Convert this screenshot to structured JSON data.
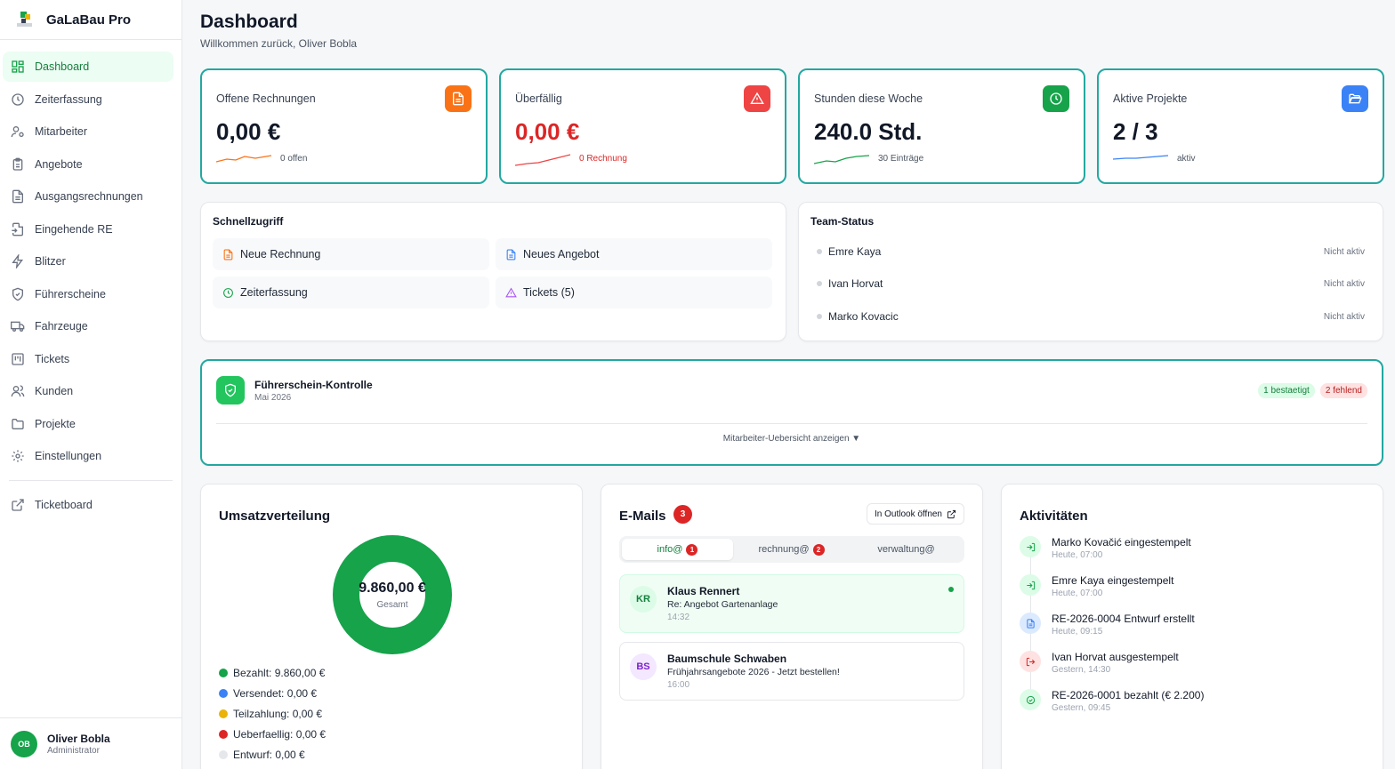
{
  "app": {
    "name": "GaLaBau Pro"
  },
  "sidebar": {
    "items": [
      {
        "label": "Dashboard",
        "icon": "layout-dashboard-icon",
        "active": true
      },
      {
        "label": "Zeiterfassung",
        "icon": "clock-icon"
      },
      {
        "label": "Mitarbeiter",
        "icon": "users-icon"
      },
      {
        "label": "Angebote",
        "icon": "clipboard-icon"
      },
      {
        "label": "Ausgangsrechnungen",
        "icon": "file-text-icon"
      },
      {
        "label": "Eingehende RE",
        "icon": "file-input-icon"
      },
      {
        "label": "Blitzer",
        "icon": "zap-icon"
      },
      {
        "label": "Führerscheine",
        "icon": "shield-icon"
      },
      {
        "label": "Fahrzeuge",
        "icon": "truck-icon"
      },
      {
        "label": "Tickets",
        "icon": "kanban-icon"
      },
      {
        "label": "Kunden",
        "icon": "user-group-icon"
      },
      {
        "label": "Projekte",
        "icon": "folder-icon"
      },
      {
        "label": "Einstellungen",
        "icon": "settings-icon"
      }
    ],
    "extra": {
      "label": "Ticketboard",
      "icon": "external-link-icon"
    },
    "user": {
      "initials": "OB",
      "name": "Oliver Bobla",
      "role": "Administrator"
    }
  },
  "header": {
    "title": "Dashboard",
    "subtitle": "Willkommen zurück, Oliver Bobla"
  },
  "stats": [
    {
      "label": "Offene Rechnungen",
      "value": "0,00 €",
      "note": "0 offen",
      "icon": "file-text-icon",
      "color": "#f97316",
      "valueColor": "#111827",
      "noteColor": "#4b5563"
    },
    {
      "label": "Überfällig",
      "value": "0,00 €",
      "note": "0 Rechnung",
      "icon": "alert-triangle-icon",
      "color": "#ef4444",
      "valueColor": "#dc2626",
      "noteColor": "#dc2626"
    },
    {
      "label": "Stunden diese Woche",
      "value": "240.0 Std.",
      "note": "30 Einträge",
      "icon": "clock-icon",
      "color": "#16a34a",
      "valueColor": "#111827",
      "noteColor": "#4b5563"
    },
    {
      "label": "Aktive Projekte",
      "value": "2 / 3",
      "note": "aktiv",
      "icon": "folder-open-icon",
      "color": "#3b82f6",
      "valueColor": "#111827",
      "noteColor": "#4b5563"
    }
  ],
  "quick": {
    "title": "Schnellzugriff",
    "buttons": [
      {
        "label": "Neue Rechnung",
        "icon": "file-text-icon",
        "color": "#f97316"
      },
      {
        "label": "Neues Angebot",
        "icon": "file-icon",
        "color": "#3b82f6"
      },
      {
        "label": "Zeiterfassung",
        "icon": "clock-icon",
        "color": "#16a34a"
      },
      {
        "label": "Tickets (5)",
        "icon": "alert-triangle-icon",
        "color": "#a855f7"
      }
    ]
  },
  "team": {
    "title": "Team-Status",
    "members": [
      {
        "name": "Emre Kaya",
        "status": "Nicht aktiv"
      },
      {
        "name": "Ivan Horvat",
        "status": "Nicht aktiv"
      },
      {
        "name": "Marko Kovacic",
        "status": "Nicht aktiv"
      }
    ]
  },
  "license": {
    "title": "Führerschein-Kontrolle",
    "period": "Mai 2026",
    "confirmed": "1 bestaetigt",
    "missing": "2 fehlend",
    "toggle": "Mitarbeiter-Uebersicht anzeigen ▼"
  },
  "revenue": {
    "title": "Umsatzverteilung",
    "total": "9.860,00 €",
    "total_label": "Gesamt",
    "legend": [
      {
        "label": "Bezahlt: 9.860,00 €",
        "color": "#16a34a"
      },
      {
        "label": "Versendet: 0,00 €",
        "color": "#3b82f6"
      },
      {
        "label": "Teilzahlung: 0,00 €",
        "color": "#eab308"
      },
      {
        "label": "Ueberfaellig: 0,00 €",
        "color": "#dc2626"
      },
      {
        "label": "Entwurf: 0,00 €",
        "color": "#e5e7eb"
      }
    ]
  },
  "chart_data": {
    "type": "pie",
    "categories": [
      "Bezahlt",
      "Versendet",
      "Teilzahlung",
      "Ueberfaellig",
      "Entwurf"
    ],
    "values": [
      9860,
      0,
      0,
      0,
      0
    ]
  },
  "emails": {
    "title": "E-Mails",
    "count": "3",
    "outlook_label": "In Outlook öffnen",
    "tabs": [
      {
        "label": "info@",
        "count": "1",
        "active": true
      },
      {
        "label": "rechnung@",
        "count": "2"
      },
      {
        "label": "verwaltung@",
        "count": ""
      }
    ],
    "items": [
      {
        "initials": "KR",
        "from": "Klaus Rennert",
        "subject": "Re: Angebot Gartenanlage",
        "time": "14:32",
        "unread": true
      },
      {
        "initials": "BS",
        "from": "Baumschule Schwaben",
        "subject": "Frühjahrsangebote 2026 - Jetzt bestellen!",
        "time": "16:00",
        "unread": false
      }
    ]
  },
  "activities": {
    "title": "Aktivitäten",
    "items": [
      {
        "text": "Marko Kovačić eingestempelt",
        "time": "Heute, 07:00",
        "icon": "log-in-icon",
        "color": "#16a34a",
        "bg": "#dcfce7"
      },
      {
        "text": "Emre Kaya eingestempelt",
        "time": "Heute, 07:00",
        "icon": "log-in-icon",
        "color": "#16a34a",
        "bg": "#dcfce7"
      },
      {
        "text": "RE-2026-0004 Entwurf erstellt",
        "time": "Heute, 09:15",
        "icon": "file-text-icon",
        "color": "#3b82f6",
        "bg": "#dbeafe"
      },
      {
        "text": "Ivan Horvat ausgestempelt",
        "time": "Gestern, 14:30",
        "icon": "log-out-icon",
        "color": "#dc2626",
        "bg": "#fee2e2"
      },
      {
        "text": "RE-2026-0001 bezahlt (€ 2.200)",
        "time": "Gestern, 09:45",
        "icon": "check-circle-icon",
        "color": "#16a34a",
        "bg": "#dcfce7"
      }
    ]
  }
}
